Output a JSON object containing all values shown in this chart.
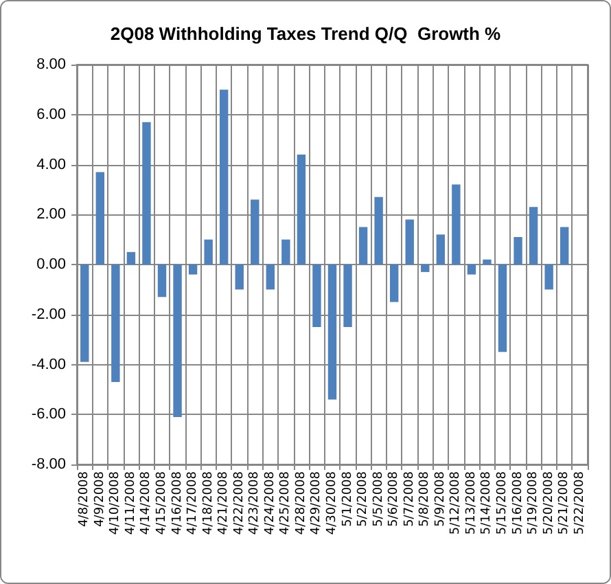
{
  "chart_data": {
    "type": "bar",
    "title": "2Q08 Withholding Taxes Trend Q/Q  Growth %",
    "categories": [
      "4/8/2008",
      "4/9/2008",
      "4/10/2008",
      "4/11/2008",
      "4/14/2008",
      "4/15/2008",
      "4/16/2008",
      "4/17/2008",
      "4/18/2008",
      "4/21/2008",
      "4/22/2008",
      "4/23/2008",
      "4/24/2008",
      "4/25/2008",
      "4/28/2008",
      "4/29/2008",
      "4/30/2008",
      "5/1/2008",
      "5/2/2008",
      "5/5/2008",
      "5/6/2008",
      "5/7/2008",
      "5/8/2008",
      "5/9/2008",
      "5/12/2008",
      "5/13/2008",
      "5/14/2008",
      "5/15/2008",
      "5/16/2008",
      "5/19/2008",
      "5/20/2008",
      "5/21/2008",
      "5/22/2008"
    ],
    "values": [
      -3.9,
      3.7,
      -4.7,
      0.5,
      5.7,
      -1.3,
      -6.1,
      -0.4,
      1.0,
      7.0,
      -1.0,
      2.6,
      -1.0,
      1.0,
      4.4,
      -2.5,
      -5.4,
      -2.5,
      1.5,
      2.7,
      -1.5,
      1.8,
      -0.3,
      1.2,
      3.2,
      -0.4,
      0.2,
      -3.5,
      1.1,
      2.3,
      -1.0,
      1.5,
      null
    ],
    "color": "#4f81bd",
    "ylim": [
      -8,
      8
    ],
    "yticks": [
      {
        "value": -8,
        "label": "-8.00"
      },
      {
        "value": -6,
        "label": "-6.00"
      },
      {
        "value": -4,
        "label": "-4.00"
      },
      {
        "value": -2,
        "label": "-2.00"
      },
      {
        "value": 0,
        "label": "0.00"
      },
      {
        "value": 2,
        "label": "2.00"
      },
      {
        "value": 4,
        "label": "4.00"
      },
      {
        "value": 6,
        "label": "6.00"
      },
      {
        "value": 8,
        "label": "8.00"
      }
    ],
    "grid": true
  }
}
